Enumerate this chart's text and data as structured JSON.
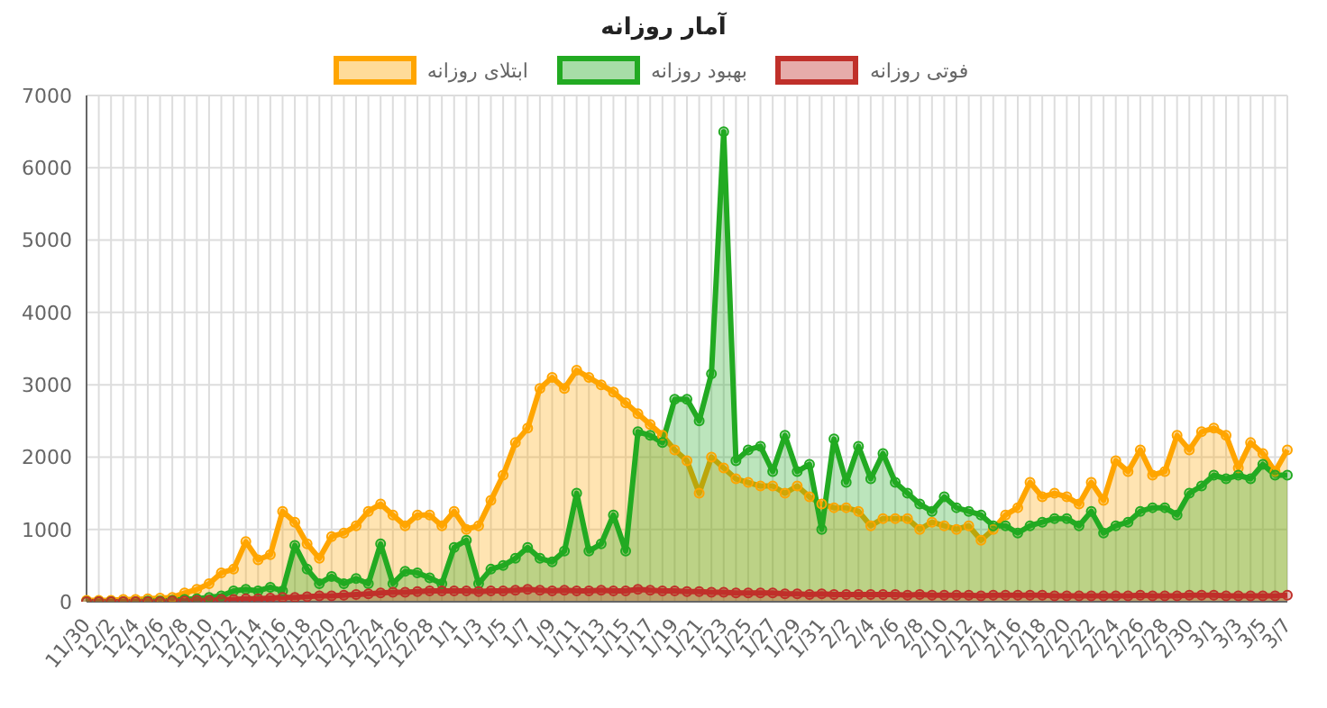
{
  "chart_data": {
    "type": "area",
    "title": "آمار روزانه",
    "categories": [
      "11/30",
      null,
      "12/2",
      null,
      "12/4",
      null,
      "12/6",
      null,
      "12/8",
      null,
      "12/10",
      null,
      "12/12",
      null,
      "12/14",
      null,
      "12/16",
      null,
      "12/18",
      null,
      "12/20",
      null,
      "12/22",
      null,
      "12/24",
      null,
      "12/26",
      null,
      "12/28",
      null,
      "1/1",
      null,
      "1/3",
      null,
      "1/5",
      null,
      "1/7",
      null,
      "1/9",
      null,
      "1/11",
      null,
      "1/13",
      null,
      "1/15",
      null,
      "1/17",
      null,
      "1/19",
      null,
      "1/21",
      null,
      "1/23",
      null,
      "1/25",
      null,
      "1/27",
      null,
      "1/29",
      null,
      "1/31",
      null,
      "2/2",
      null,
      "2/4",
      null,
      "2/6",
      null,
      "2/8",
      null,
      "2/10",
      null,
      "2/12",
      null,
      "2/14",
      null,
      "2/16",
      null,
      "2/18",
      null,
      "2/20",
      null,
      "2/22",
      null,
      "2/24",
      null,
      "2/26",
      null,
      "2/28",
      null,
      "2/30",
      null,
      "3/1",
      null,
      "3/3",
      null,
      "3/5",
      null,
      "3/7"
    ],
    "series": [
      {
        "name": "ابتلای روزانه",
        "color": "#ffa500",
        "values": [
          20,
          20,
          20,
          30,
          30,
          40,
          50,
          60,
          120,
          170,
          250,
          400,
          450,
          830,
          580,
          650,
          1250,
          1100,
          800,
          600,
          900,
          950,
          1050,
          1250,
          1350,
          1200,
          1050,
          1200,
          1200,
          1050,
          1250,
          1000,
          1050,
          1400,
          1750,
          2200,
          2400,
          2950,
          3100,
          2950,
          3200,
          3100,
          3000,
          2900,
          2750,
          2600,
          2450,
          2300,
          2100,
          1950,
          1500,
          2000,
          1850,
          1700,
          1650,
          1600,
          1600,
          1500,
          1600,
          1450,
          1350,
          1300,
          1300,
          1250,
          1050,
          1150,
          1150,
          1150,
          1000,
          1100,
          1050,
          1000,
          1050,
          850,
          1000,
          1200,
          1300,
          1650,
          1450,
          1500,
          1450,
          1350,
          1650,
          1400,
          1950,
          1800,
          2100,
          1750,
          1800,
          2300,
          2100,
          2350,
          2400,
          2300,
          1850,
          2200,
          2050,
          1800,
          2100
        ]
      },
      {
        "name": "بهبود روزانه",
        "color": "#22aa22",
        "values": [
          0,
          0,
          0,
          0,
          0,
          10,
          10,
          20,
          30,
          40,
          60,
          80,
          150,
          170,
          150,
          200,
          150,
          780,
          450,
          250,
          350,
          250,
          320,
          250,
          800,
          250,
          420,
          400,
          330,
          250,
          750,
          850,
          250,
          450,
          500,
          600,
          750,
          600,
          550,
          700,
          1500,
          700,
          800,
          1200,
          700,
          2350,
          2300,
          2200,
          2800,
          2800,
          2500,
          3150,
          6500,
          1950,
          2100,
          2150,
          1800,
          2300,
          1800,
          1900,
          1000,
          2250,
          1650,
          2150,
          1700,
          2050,
          1650,
          1500,
          1350,
          1250,
          1450,
          1300,
          1250,
          1200,
          1050,
          1050,
          950,
          1050,
          1100,
          1150,
          1150,
          1050,
          1250,
          950,
          1050,
          1100,
          1250,
          1300,
          1300,
          1200,
          1500,
          1600,
          1750,
          1700,
          1750,
          1700,
          1900,
          1750,
          1750
        ]
      },
      {
        "name": "فوتی روزانه",
        "color": "#c0302a",
        "values": [
          0,
          0,
          0,
          0,
          0,
          0,
          0,
          10,
          10,
          20,
          20,
          30,
          30,
          40,
          40,
          50,
          60,
          60,
          70,
          80,
          80,
          90,
          100,
          110,
          120,
          130,
          130,
          140,
          150,
          150,
          150,
          150,
          140,
          150,
          150,
          160,
          170,
          160,
          150,
          160,
          150,
          150,
          160,
          150,
          150,
          170,
          160,
          150,
          150,
          140,
          140,
          130,
          130,
          120,
          120,
          120,
          120,
          110,
          110,
          100,
          110,
          100,
          100,
          100,
          100,
          100,
          100,
          90,
          100,
          90,
          90,
          90,
          90,
          80,
          90,
          90,
          90,
          90,
          90,
          80,
          80,
          80,
          80,
          80,
          80,
          80,
          90,
          80,
          80,
          80,
          90,
          90,
          90,
          80,
          80,
          80,
          80,
          80,
          90
        ]
      }
    ],
    "ylim": [
      0,
      7000
    ],
    "yticks": [
      0,
      1000,
      2000,
      3000,
      4000,
      5000,
      6000,
      7000
    ],
    "grid": true,
    "legend": "top",
    "marker": "circle"
  }
}
